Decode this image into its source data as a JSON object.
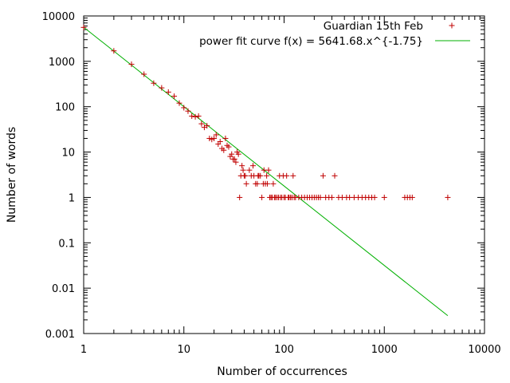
{
  "chart_data": {
    "type": "scatter",
    "xlabel": "Number of occurrences",
    "ylabel": "Number of words",
    "xscale": "log",
    "yscale": "log",
    "xlim": [
      1,
      10000
    ],
    "ylim": [
      0.001,
      10000
    ],
    "x_ticks": [
      1,
      10,
      100,
      1000,
      10000
    ],
    "x_tick_labels": [
      "1",
      "10",
      "100",
      "1000",
      "10000"
    ],
    "y_ticks": [
      0.001,
      0.01,
      0.1,
      1,
      10,
      100,
      1000,
      10000
    ],
    "y_tick_labels": [
      "0.001",
      "0.01",
      "0.1",
      "1",
      "10",
      "100",
      "1000",
      "10000"
    ],
    "grid": false,
    "legend_position": "top-right",
    "colors": {
      "points": "#c00000",
      "fit": "#00b000"
    },
    "series": [
      {
        "name": "Guardian 15th Feb",
        "kind": "points",
        "points": [
          [
            1,
            5600
          ],
          [
            2,
            1700
          ],
          [
            3,
            860
          ],
          [
            4,
            520
          ],
          [
            5,
            330
          ],
          [
            6,
            260
          ],
          [
            7,
            210
          ],
          [
            8,
            170
          ],
          [
            9,
            120
          ],
          [
            10,
            95
          ],
          [
            11,
            80
          ],
          [
            12,
            62
          ],
          [
            13,
            60
          ],
          [
            14,
            62
          ],
          [
            15,
            42
          ],
          [
            16,
            35
          ],
          [
            17,
            38
          ],
          [
            18,
            20
          ],
          [
            19,
            19
          ],
          [
            20,
            20
          ],
          [
            21,
            24
          ],
          [
            22,
            15
          ],
          [
            23,
            17
          ],
          [
            24,
            12
          ],
          [
            25,
            11
          ],
          [
            26,
            20
          ],
          [
            27,
            14
          ],
          [
            28,
            13
          ],
          [
            29,
            8
          ],
          [
            30,
            9
          ],
          [
            31,
            7
          ],
          [
            32,
            7
          ],
          [
            33,
            6
          ],
          [
            34,
            10
          ],
          [
            35,
            9
          ],
          [
            36,
            1
          ],
          [
            37,
            3
          ],
          [
            38,
            5
          ],
          [
            39,
            4
          ],
          [
            40,
            3
          ],
          [
            41,
            3
          ],
          [
            42,
            2
          ],
          [
            45,
            4
          ],
          [
            47,
            3
          ],
          [
            49,
            5
          ],
          [
            50,
            3
          ],
          [
            52,
            2
          ],
          [
            54,
            2
          ],
          [
            55,
            3
          ],
          [
            56,
            3
          ],
          [
            58,
            3
          ],
          [
            60,
            1
          ],
          [
            62,
            2
          ],
          [
            63,
            4
          ],
          [
            65,
            2
          ],
          [
            67,
            3
          ],
          [
            68,
            2
          ],
          [
            70,
            4
          ],
          [
            72,
            1
          ],
          [
            74,
            1
          ],
          [
            76,
            1
          ],
          [
            78,
            2
          ],
          [
            80,
            1
          ],
          [
            82,
            1
          ],
          [
            85,
            1
          ],
          [
            88,
            1
          ],
          [
            90,
            3
          ],
          [
            92,
            1
          ],
          [
            95,
            1
          ],
          [
            98,
            3
          ],
          [
            100,
            1
          ],
          [
            103,
            1
          ],
          [
            106,
            3
          ],
          [
            110,
            1
          ],
          [
            112,
            1
          ],
          [
            116,
            1
          ],
          [
            120,
            1
          ],
          [
            123,
            3
          ],
          [
            126,
            1
          ],
          [
            130,
            1
          ],
          [
            140,
            1
          ],
          [
            150,
            1
          ],
          [
            160,
            1
          ],
          [
            170,
            1
          ],
          [
            180,
            1
          ],
          [
            190,
            1
          ],
          [
            200,
            1
          ],
          [
            210,
            1
          ],
          [
            220,
            1
          ],
          [
            230,
            1
          ],
          [
            245,
            3
          ],
          [
            260,
            1
          ],
          [
            280,
            1
          ],
          [
            300,
            1
          ],
          [
            320,
            3
          ],
          [
            350,
            1
          ],
          [
            380,
            1
          ],
          [
            420,
            1
          ],
          [
            450,
            1
          ],
          [
            500,
            1
          ],
          [
            550,
            1
          ],
          [
            600,
            1
          ],
          [
            650,
            1
          ],
          [
            700,
            1
          ],
          [
            750,
            1
          ],
          [
            800,
            1
          ],
          [
            1000,
            1
          ],
          [
            1600,
            1
          ],
          [
            1700,
            1
          ],
          [
            1800,
            1
          ],
          [
            1900,
            1
          ],
          [
            4300,
            1
          ]
        ]
      },
      {
        "name": "power fit curve f(x) = 5641.68.x^{-1.75}",
        "kind": "line",
        "coefficient": 5641.68,
        "exponent": -1.75,
        "x_range": [
          1,
          4300
        ]
      }
    ]
  }
}
